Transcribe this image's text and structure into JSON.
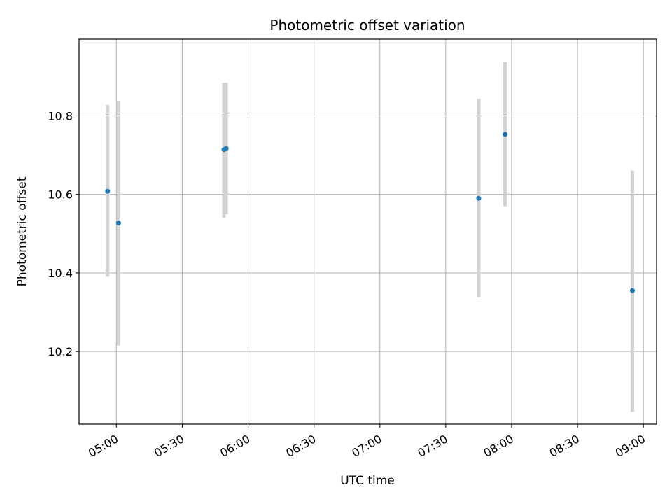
{
  "chart_data": {
    "type": "scatter",
    "title": "Photometric offset variation",
    "xlabel": "UTC time",
    "ylabel": "Photometric offset",
    "x_is_time": true,
    "xlim": [
      "04:43",
      "09:06"
    ],
    "ylim": [
      10.015,
      10.995
    ],
    "x_ticks": [
      "05:00",
      "05:30",
      "06:00",
      "06:30",
      "07:00",
      "07:30",
      "08:00",
      "08:30",
      "09:00"
    ],
    "y_ticks": [
      10.2,
      10.4,
      10.6,
      10.8
    ],
    "grid": true,
    "colors": {
      "points": "#1f77b4",
      "errorbars": "#d3d3d3",
      "grid": "#b0b0b0"
    },
    "points": [
      {
        "x": "04:56",
        "y": 10.608,
        "ylow": 10.39,
        "yhigh": 10.828
      },
      {
        "x": "05:01",
        "y": 10.527,
        "ylow": 10.215,
        "yhigh": 10.838
      },
      {
        "x": "05:49",
        "y": 10.714,
        "ylow": 10.54,
        "yhigh": 10.884
      },
      {
        "x": "05:50",
        "y": 10.717,
        "ylow": 10.55,
        "yhigh": 10.884
      },
      {
        "x": "07:45",
        "y": 10.59,
        "ylow": 10.338,
        "yhigh": 10.843
      },
      {
        "x": "07:57",
        "y": 10.753,
        "ylow": 10.57,
        "yhigh": 10.937
      },
      {
        "x": "08:55",
        "y": 10.355,
        "ylow": 10.046,
        "yhigh": 10.661
      }
    ]
  }
}
